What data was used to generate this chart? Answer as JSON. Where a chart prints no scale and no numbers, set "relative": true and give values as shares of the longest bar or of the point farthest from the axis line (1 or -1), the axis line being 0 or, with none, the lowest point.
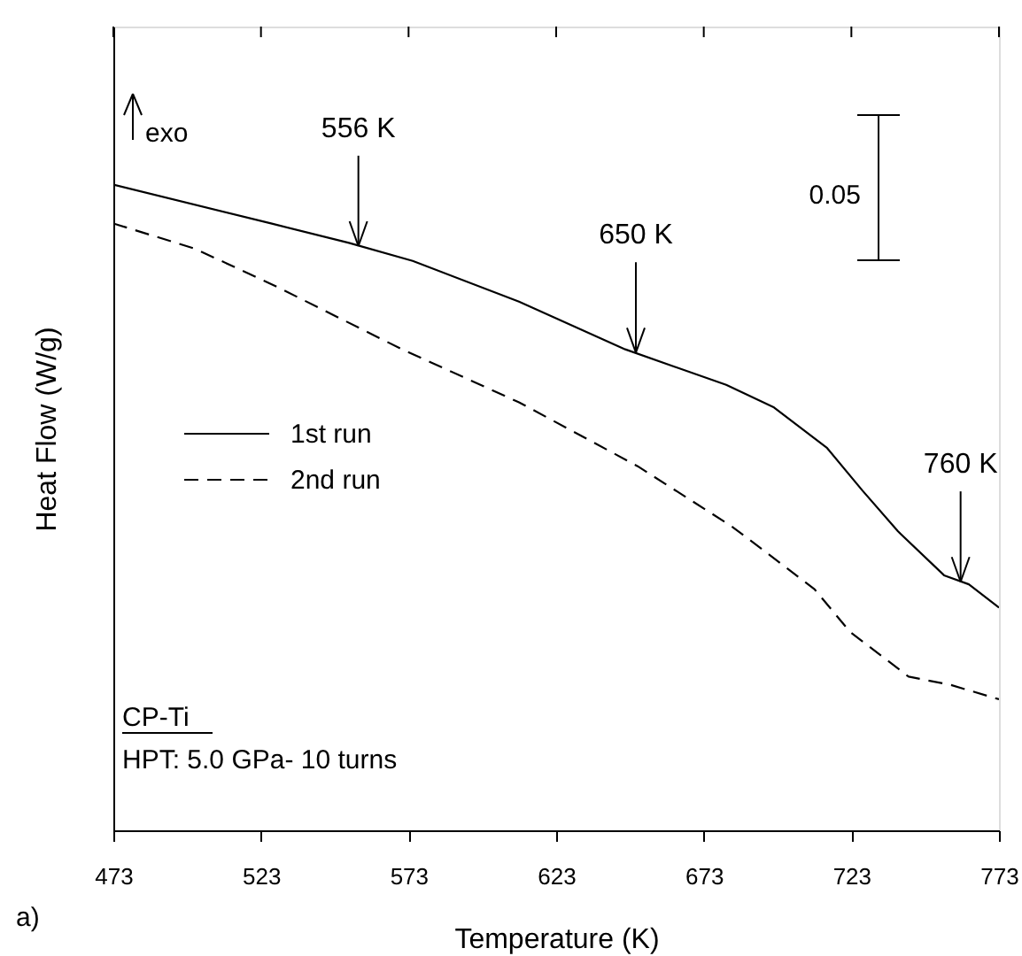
{
  "chart_data": {
    "type": "line",
    "xlabel": "Temperature (K)",
    "ylabel": "Heat Flow (W/g)",
    "relative": true,
    "xlim": [
      473,
      773
    ],
    "xticks": [
      473,
      523,
      573,
      623,
      673,
      723,
      773
    ],
    "grid": false,
    "legend": "left",
    "tick_labels": "x",
    "series": [
      {
        "name": "1st run",
        "color": "#000000",
        "line_style": "solid",
        "x": [
          473,
          526.4,
          552.8,
          574.4,
          610.4,
          646.4,
          680.6,
          696.8,
          714.8,
          726.8,
          738.8,
          754.4,
          762.8,
          773
        ],
        "values": [
          1.0,
          0.94,
          0.91,
          0.882,
          0.819,
          0.745,
          0.69,
          0.655,
          0.592,
          0.526,
          0.463,
          0.395,
          0.381,
          0.345
        ]
      },
      {
        "name": "2nd run",
        "color": "#000000",
        "line_style": "dashed",
        "x": [
          473,
          500.6,
          528.8,
          570.8,
          610.4,
          650.6,
          682.4,
          692.6,
          710.6,
          722.6,
          742.4,
          756.8,
          773
        ],
        "values": [
          0.94,
          0.901,
          0.841,
          0.745,
          0.663,
          0.564,
          0.471,
          0.436,
          0.373,
          0.307,
          0.238,
          0.225,
          0.203
        ]
      }
    ],
    "annotations": [
      {
        "text": "556 K",
        "x": 556,
        "y": 0.905
      },
      {
        "text": "650 K",
        "x": 650,
        "y": 0.74
      },
      {
        "text": "760 K",
        "x": 760,
        "y": 0.385
      },
      "exo",
      "0.05",
      "CP-Ti",
      "HPT: 5.0 GPa- 10 turns",
      "a)"
    ]
  }
}
